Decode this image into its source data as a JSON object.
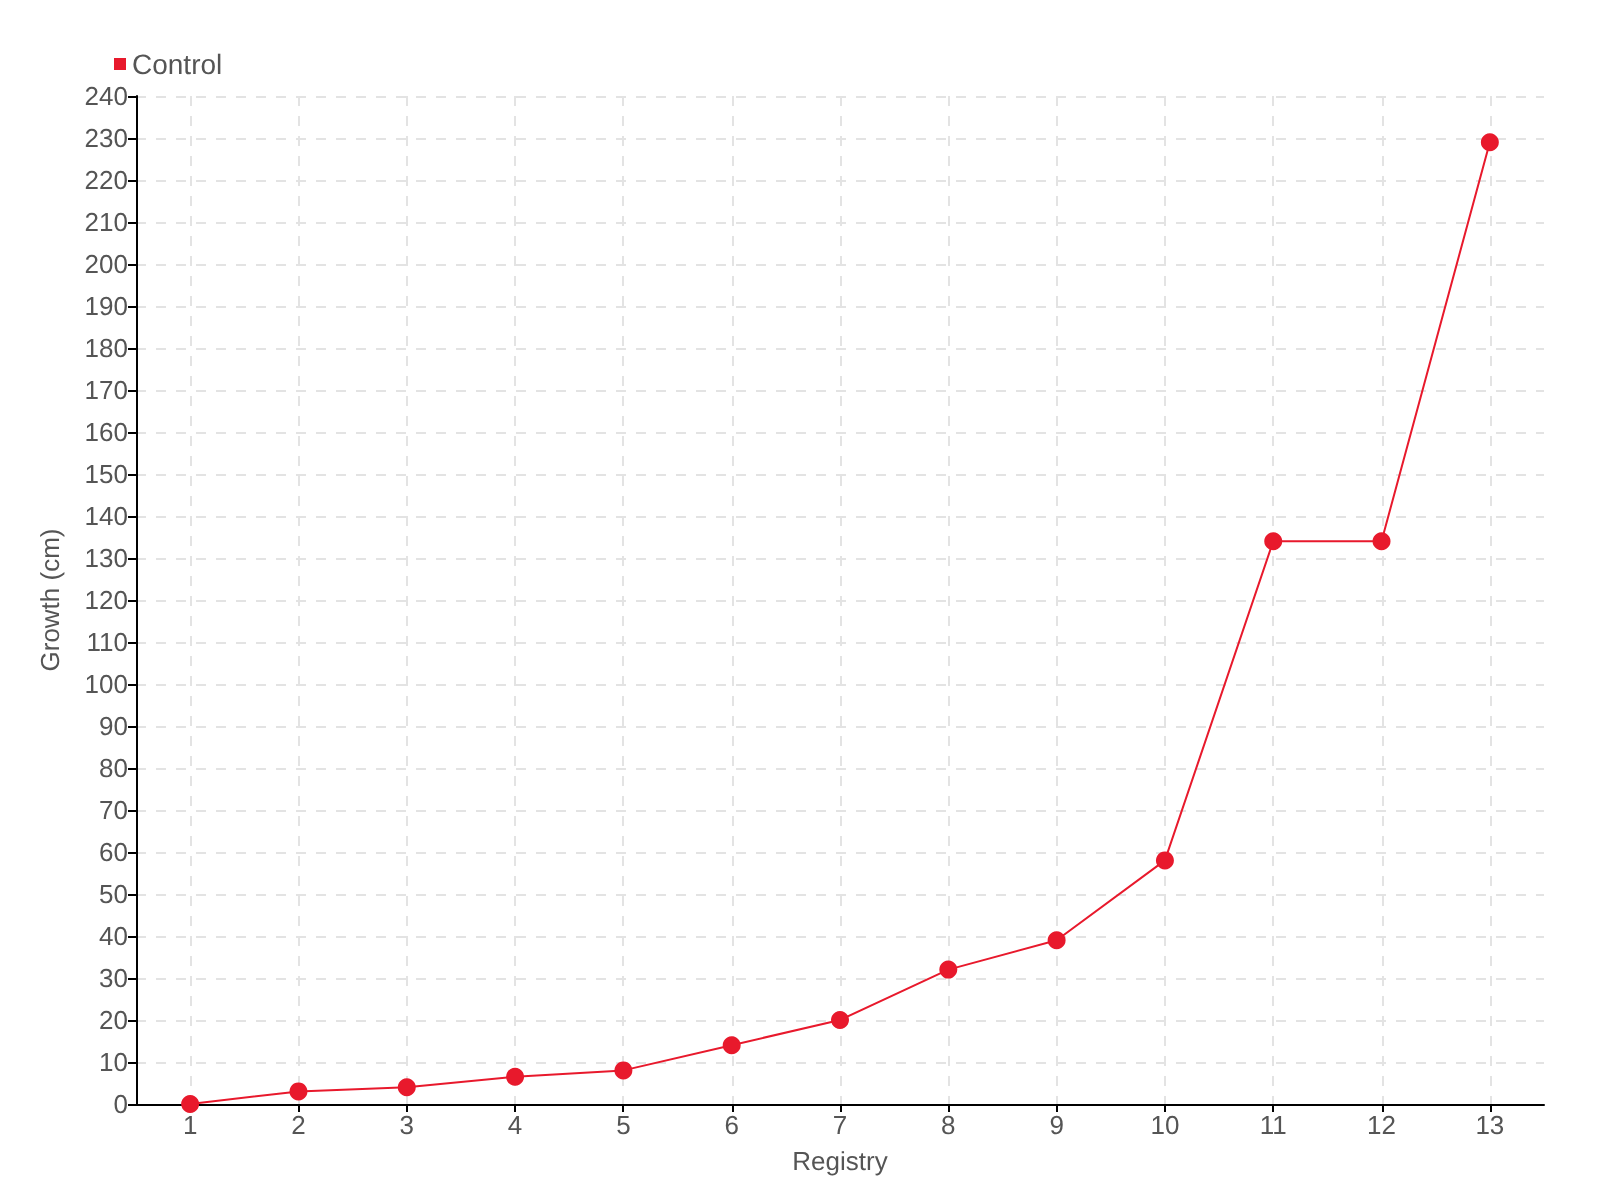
{
  "chart_data": {
    "type": "line",
    "xlabel": "Registry",
    "ylabel": "Growth (cm)",
    "x": [
      1,
      2,
      3,
      4,
      5,
      6,
      7,
      8,
      9,
      10,
      11,
      12,
      13
    ],
    "xlim": [
      0.5,
      13.5
    ],
    "xticks": [
      1,
      2,
      3,
      4,
      5,
      6,
      7,
      8,
      9,
      10,
      11,
      12,
      13
    ],
    "series": [
      {
        "name": "Control",
        "color": "#e8192c",
        "values": [
          0,
          3,
          4,
          6.5,
          8,
          14,
          20,
          32,
          39,
          58,
          134,
          134,
          229
        ]
      }
    ],
    "ylim": [
      0,
      240
    ],
    "yticks": [
      0,
      10,
      20,
      30,
      40,
      50,
      60,
      70,
      80,
      90,
      100,
      110,
      120,
      130,
      140,
      150,
      160,
      170,
      180,
      190,
      200,
      210,
      220,
      230,
      240
    ],
    "grid": true,
    "legend": "top left",
    "marker": "circle",
    "line_style": "solid"
  }
}
